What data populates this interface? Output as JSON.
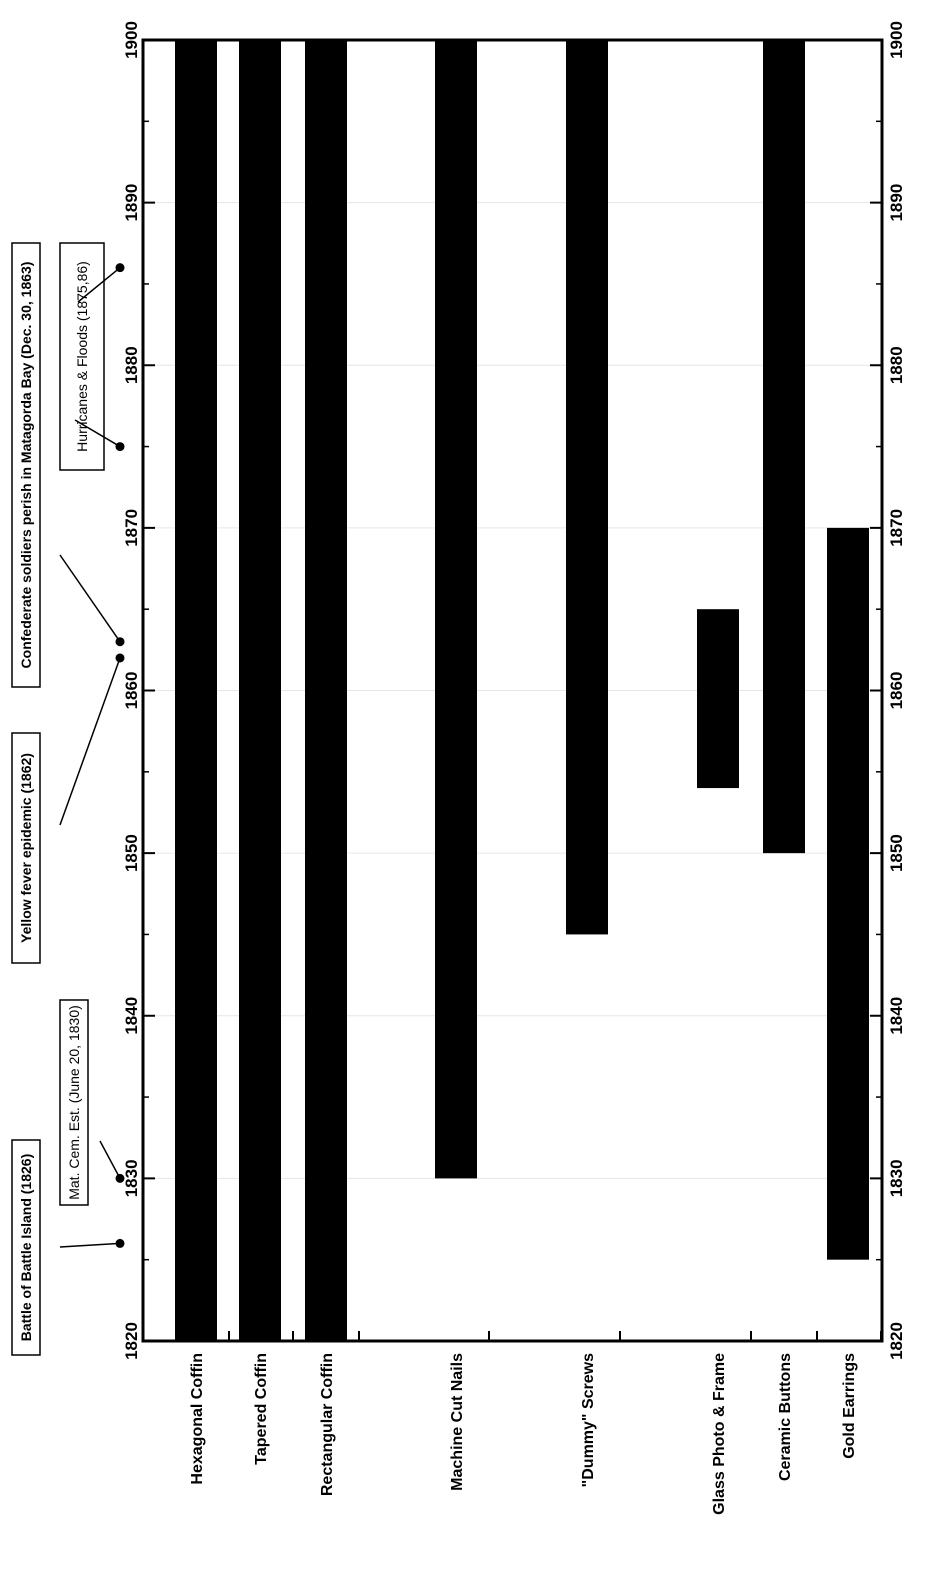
{
  "chart_data": {
    "type": "bar",
    "orientation": "horizontal-range",
    "x_axis": {
      "min": 1820,
      "max": 1900,
      "ticks": [
        1820,
        1830,
        1840,
        1850,
        1860,
        1870,
        1880,
        1890,
        1900
      ]
    },
    "grid": true,
    "series": [
      {
        "category": "Hexagonal Coffin",
        "start": 1820,
        "end": 1900
      },
      {
        "category": "Tapered Coffin",
        "start": 1820,
        "end": 1900
      },
      {
        "category": "Rectangular Coffin",
        "start": 1820,
        "end": 1900
      },
      {
        "category": "Machine Cut Nails",
        "start": 1830,
        "end": 1900
      },
      {
        "category": "\"Dummy\" Screws",
        "start": 1845,
        "end": 1900
      },
      {
        "category": "Glass Photo & Frame",
        "start": 1854,
        "end": 1865
      },
      {
        "category": "Ceramic Buttons",
        "start": 1850,
        "end": 1900
      },
      {
        "category": "Gold Earrings",
        "start": 1825,
        "end": 1870
      }
    ],
    "annotations": [
      {
        "text": "Battle of Battle Island (1826)",
        "years": [
          1826
        ],
        "bold": true
      },
      {
        "text": "Mat. Cem. Est. (June 20, 1830)",
        "years": [
          1830
        ],
        "bold": false
      },
      {
        "text": "Yellow fever epidemic  (1862)",
        "years": [
          1862
        ],
        "bold": true
      },
      {
        "text": "Confederate soldiers perish in Matagorda Bay (Dec. 30, 1863)",
        "years": [
          1863
        ],
        "bold": true
      },
      {
        "text": "Hurricanes & Floods (1875,86)",
        "years": [
          1875,
          1886
        ],
        "bold": false
      }
    ]
  }
}
